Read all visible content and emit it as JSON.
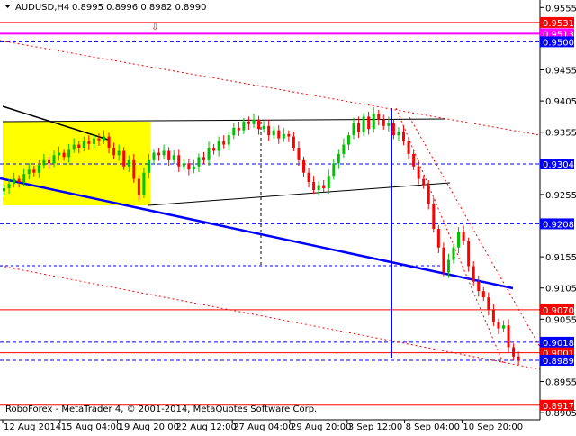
{
  "header": {
    "symbol_label": "AUDUSD,H4",
    "ohlc": "0.8995 0.8996 0.8982 0.8990",
    "collapse_icon": "triangle-down-icon"
  },
  "footer": {
    "copyright": "RoboForex - MetaTrader 4, © 2001-2014, MetaQuotes Software Corp."
  },
  "chart_data": {
    "type": "candlestick",
    "timeframe": "H4",
    "ylim": [
      0.8905,
      0.9555
    ],
    "y_ticks": [
      "0.9555",
      "0.9455",
      "0.9405",
      "0.9355",
      "0.9255",
      "0.9155",
      "0.9105",
      "0.9055",
      "0.8955",
      "0.8905"
    ],
    "x_ticks": [
      "12 Aug 2014",
      "15 Aug 04:00",
      "19 Aug 20:00",
      "22 Aug 12:00",
      "27 Aug 04:00",
      "29 Aug 20:00",
      "3 Sep 12:00",
      "8 Sep 04:00",
      "10 Sep 20:00"
    ],
    "closes": [
      0.9265,
      0.9272,
      0.928,
      0.9275,
      0.9288,
      0.9295,
      0.929,
      0.9302,
      0.931,
      0.9305,
      0.9318,
      0.9322,
      0.9315,
      0.9328,
      0.9335,
      0.933,
      0.934,
      0.9336,
      0.9345,
      0.9342,
      0.9348,
      0.933,
      0.9318,
      0.9325,
      0.93,
      0.931,
      0.928,
      0.9255,
      0.929,
      0.931,
      0.9322,
      0.9318,
      0.9325,
      0.931,
      0.9318,
      0.93,
      0.9305,
      0.9295,
      0.93,
      0.9315,
      0.931,
      0.933,
      0.9325,
      0.934,
      0.9335,
      0.935,
      0.9362,
      0.9358,
      0.9372,
      0.9368,
      0.9375,
      0.936,
      0.9365,
      0.935,
      0.9358,
      0.9345,
      0.9352,
      0.9348,
      0.933,
      0.931,
      0.929,
      0.9275,
      0.9262,
      0.927,
      0.9265,
      0.9285,
      0.9305,
      0.932,
      0.9335,
      0.935,
      0.937,
      0.9355,
      0.938,
      0.936,
      0.9385,
      0.9375,
      0.9365,
      0.937,
      0.935,
      0.9355,
      0.934,
      0.932,
      0.93,
      0.928,
      0.927,
      0.924,
      0.92,
      0.917,
      0.913,
      0.915,
      0.917,
      0.9195,
      0.918,
      0.914,
      0.9115,
      0.91,
      0.909,
      0.907,
      0.905,
      0.904,
      0.9045,
      0.901,
      0.8995,
      0.899
    ],
    "levels": [
      {
        "price": "0.9531",
        "color": "#ff0000",
        "style": "solid"
      },
      {
        "price": "0.9513",
        "color": "#ff00ff",
        "style": "solid-thick"
      },
      {
        "price": "0.9500",
        "color": "#0000ff",
        "style": "dashed"
      },
      {
        "price": "0.9304",
        "color": "#0000ff",
        "style": "dashed"
      },
      {
        "price": "0.9208",
        "color": "#0000ff",
        "style": "dashed"
      },
      {
        "price": "0.9070",
        "color": "#ff0000",
        "style": "solid"
      },
      {
        "price": "0.9018",
        "color": "#0000ff",
        "style": "dashed"
      },
      {
        "price": "0.9001",
        "color": "#ff0000",
        "style": "solid"
      },
      {
        "price": "0.8989",
        "color": "#0000ff",
        "style": "dashed"
      },
      {
        "price": "0.8917",
        "color": "#ff0000",
        "style": "solid"
      }
    ],
    "colors": {
      "bull": "#00c000",
      "bear": "#ff0000",
      "zone": "#ffff00",
      "trend": "#0000ff"
    }
  }
}
